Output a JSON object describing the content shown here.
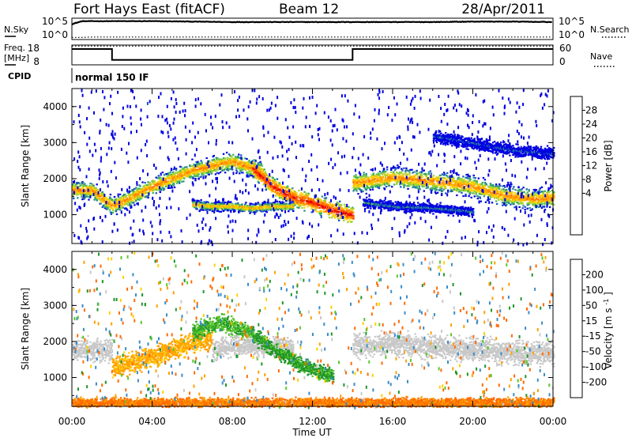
{
  "header": {
    "station": "Fort Hays East (fitACF)",
    "beam": "Beam 12",
    "date": "28/Apr/2011"
  },
  "chart_data": [
    {
      "type": "line",
      "panel": "noise",
      "left_label": "N.Sky",
      "right_label": "N.Search",
      "y_ticks_left": [
        "10^5",
        "10^0"
      ],
      "y_ticks_right": [
        "10^5",
        "10^0"
      ],
      "x": [
        0,
        0.5,
        1,
        2,
        4,
        6,
        8,
        10,
        12,
        14,
        16,
        18,
        20,
        22,
        24
      ],
      "series": [
        {
          "name": "N.Sky",
          "values": [
            3.6,
            4.3,
            4.3,
            4.3,
            4.3,
            4.2,
            4.1,
            4.1,
            4.1,
            4.1,
            4.1,
            4.1,
            4.2,
            4.2,
            4.1
          ]
        },
        {
          "name": "N.Search",
          "values": [
            0.5,
            0.5,
            0.6,
            0.6,
            0.6,
            0.6,
            0.6,
            0.6,
            0.6,
            0.6,
            0.6,
            0.6,
            0.6,
            0.6,
            0.6
          ]
        }
      ]
    },
    {
      "type": "line",
      "panel": "frequency",
      "left_label": "Freq.",
      "left_unit": "[MHz]",
      "right_label": "Nave",
      "y_ticks_left": [
        "18",
        "8"
      ],
      "y_ticks_right": [
        "60",
        "0"
      ],
      "ylim_left": [
        8,
        18
      ],
      "ylim_right": [
        0,
        60
      ],
      "x": [
        0,
        2,
        2,
        14,
        14,
        24
      ],
      "series": [
        {
          "name": "Freq.",
          "values": [
            16,
            16,
            10.5,
            10.5,
            16,
            16
          ]
        },
        {
          "name": "Nave",
          "values": [
            57,
            57,
            57,
            57,
            57,
            57
          ]
        }
      ]
    },
    {
      "type": "text",
      "panel": "cpid",
      "label": "CPID",
      "text": "normal 150 IF"
    },
    {
      "type": "heatmap",
      "panel": "power",
      "ylabel": "Slant Range [km]",
      "colorbar_label": "Power [dB]",
      "colorbar_ticks": [
        "28",
        "24",
        "20",
        "16",
        "12",
        "8",
        "4"
      ],
      "colors": [
        "#0000e0",
        "#1a52c8",
        "#2c8c8c",
        "#3cb45a",
        "#a0d232",
        "#ffd200",
        "#ffaa00",
        "#ff7800",
        "#ff3c00",
        "#e10000"
      ],
      "y_ticks": [
        "4000",
        "3000",
        "2000",
        "1000"
      ],
      "ylim": [
        200,
        4500
      ],
      "xlim": [
        0,
        24
      ],
      "bands": [
        {
          "x": [
            0.0,
            1.0,
            2.0,
            4.0,
            6.0,
            8.0,
            9.5
          ],
          "y": [
            1700,
            1700,
            1250,
            1800,
            2250,
            2500,
            2200
          ],
          "width": 230,
          "level": 20
        },
        {
          "x": [
            9.0,
            10.0,
            11.0,
            12.0,
            13.0,
            14.0
          ],
          "y": [
            2300,
            1800,
            1500,
            1350,
            1150,
            1000
          ],
          "width": 220,
          "level": 26
        },
        {
          "x": [
            6.0,
            7.0,
            8.0,
            9.0,
            10.0,
            11.0
          ],
          "y": [
            1300,
            1250,
            1250,
            1200,
            1250,
            1250
          ],
          "width": 120,
          "level": 18
        },
        {
          "x": [
            14.0,
            16.0,
            18.0,
            20.0,
            21.5,
            23.0,
            24.0
          ],
          "y": [
            1900,
            2050,
            1950,
            1800,
            1550,
            1450,
            1500
          ],
          "width": 260,
          "level": 20
        },
        {
          "x": [
            14.5,
            16.0,
            18.0,
            20.0
          ],
          "y": [
            1350,
            1250,
            1200,
            1100
          ],
          "width": 120,
          "level": 8
        },
        {
          "x": [
            18.0,
            20.0,
            22.0,
            24.0
          ],
          "y": [
            3200,
            3000,
            2800,
            2700
          ],
          "width": 150,
          "level": 6
        }
      ]
    },
    {
      "type": "heatmap",
      "panel": "velocity",
      "ylabel": "Slant Range [km]",
      "xlabel": "Time UT",
      "colorbar_label": "Velocity [m s^-1]",
      "colorbar_ticks": [
        "200",
        "100",
        "50",
        "15",
        "-15",
        "-50",
        "-100",
        "-200"
      ],
      "colors": [
        "#0000d0",
        "#3a8cc8",
        "#1e9628",
        "#5ac828",
        "#c8c8c8",
        "#ffd000",
        "#ffa000",
        "#ff6a00",
        "#e00000"
      ],
      "y_ticks": [
        "4000",
        "3000",
        "2000",
        "1000"
      ],
      "ylim": [
        200,
        4500
      ],
      "xlim": [
        0,
        24
      ],
      "x_ticks": [
        "00:00",
        "04:00",
        "08:00",
        "12:00",
        "16:00",
        "20:00",
        "00:00"
      ],
      "bands": [
        {
          "x": [
            0.0,
            2.0
          ],
          "y": [
            1800,
            1800
          ],
          "width": 280,
          "level": 0
        },
        {
          "x": [
            2.0,
            4.0,
            6.0,
            7.0
          ],
          "y": [
            1300,
            1600,
            2000,
            2100
          ],
          "width": 260,
          "level": -40
        },
        {
          "x": [
            6.0,
            7.5,
            9.0
          ],
          "y": [
            2300,
            2550,
            2200
          ],
          "width": 220,
          "level": 30
        },
        {
          "x": [
            7.0,
            8.0,
            10.0,
            11.0
          ],
          "y": [
            1800,
            1900,
            1900,
            1850
          ],
          "width": 250,
          "level": 0
        },
        {
          "x": [
            9.0,
            10.0,
            11.0,
            12.0,
            13.0
          ],
          "y": [
            2200,
            1800,
            1500,
            1250,
            1050
          ],
          "width": 200,
          "level": 40
        },
        {
          "x": [
            14.0,
            16.0,
            18.0,
            20.0,
            22.0,
            24.0
          ],
          "y": [
            1900,
            1950,
            1850,
            1800,
            1700,
            1700
          ],
          "width": 300,
          "level": 0
        },
        {
          "x": [
            0.0,
            6.0,
            12.0,
            18.0,
            24.0
          ],
          "y": [
            320,
            320,
            320,
            320,
            320
          ],
          "width": 120,
          "level": -80
        }
      ]
    }
  ]
}
